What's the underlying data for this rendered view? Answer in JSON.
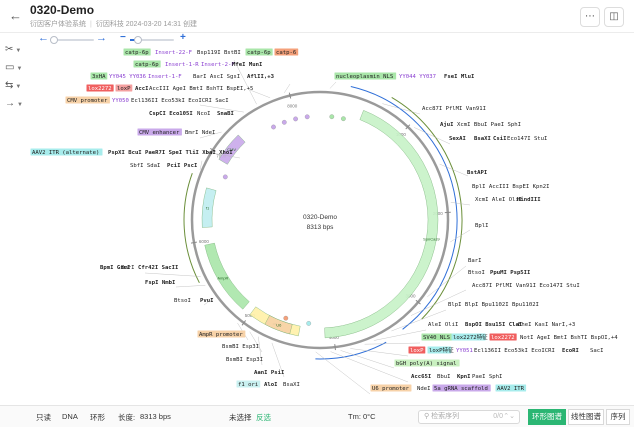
{
  "header": {
    "title": "0320-Demo",
    "org": "衍因客户体验系统",
    "meta": "衍因科技 2024-03-20 14:31 创建",
    "more_icon": "ellipsis-icon",
    "panel_icon": "side-panel-icon"
  },
  "tools": [
    {
      "icon": "scissors-icon",
      "glyph": "✂"
    },
    {
      "icon": "tag-icon",
      "glyph": "▭"
    },
    {
      "icon": "swap-icon",
      "glyph": "⇆"
    },
    {
      "icon": "arrow-right-icon",
      "glyph": "→"
    }
  ],
  "plasmid": {
    "name": "0320-Demo",
    "size_label": "8313 bps",
    "ticks": [
      "1000",
      "2000",
      "3000",
      "4000",
      "5000",
      "6000",
      "7000",
      "8000"
    ]
  },
  "labels": [
    {
      "t": "catp-6p",
      "bg": "#a9e6a9"
    },
    {
      "t": "Insert-22-F",
      "c": "#8a3fd1"
    },
    {
      "t": "Bsp119I BstBI"
    },
    {
      "t": "catp-6p",
      "bg": "#a9e6a9"
    },
    {
      "t": "catp-6",
      "bg": "#f4a07a"
    },
    {
      "t": "catp-6p",
      "bg": "#a9e6a9"
    },
    {
      "t": "Insert-1-R",
      "c": "#8a3fd1"
    },
    {
      "t": "Insert-2-F",
      "c": "#8a3fd1"
    },
    {
      "t": "MfeI MunI",
      "b": true
    },
    {
      "t": "3xHA",
      "bg": "#a9e6a9"
    },
    {
      "t": "YY045 YY036",
      "c": "#8a3fd1"
    },
    {
      "t": "Insert-1-F",
      "c": "#8a3fd1"
    },
    {
      "t": "BarI AscI SgsI"
    },
    {
      "t": "AflII,+3",
      "b": true
    },
    {
      "t": "lox2272",
      "bg": "#f05f5f",
      "c": "#fff"
    },
    {
      "t": "loxP",
      "bg": "#f4a0a0"
    },
    {
      "t": "AccI",
      "b": true
    },
    {
      "t": "AccIII AgeI BmtI BshTI BspEI,+5"
    },
    {
      "t": "CMV promoter",
      "bg": "#f7d2a8"
    },
    {
      "t": "YY050",
      "c": "#8a3fd1"
    },
    {
      "t": "Ecl136II Eco53kI EcoICRI SacI"
    },
    {
      "t": "CspCI Eco105I",
      "b": true
    },
    {
      "t": "NcoI"
    },
    {
      "t": "SnaBI",
      "b": true
    },
    {
      "t": "CMV enhancer",
      "bg": "#c9a9ea"
    },
    {
      "t": "BmrI NdeI"
    },
    {
      "t": "AAV2 ITR (alternate)",
      "bg": "#a7ecec"
    },
    {
      "t": "PspXI BcuI PaeR7I SpeI TliI XbaI XhoI",
      "b": true
    },
    {
      "t": "SbfI SdaI"
    },
    {
      "t": "PciI PscI",
      "b": true
    },
    {
      "t": "nucleoplasmin NLS",
      "bg": "#a9e6a9"
    },
    {
      "t": "YY044 YY037",
      "c": "#8a3fd1"
    },
    {
      "t": "FseI MluI",
      "b": true
    },
    {
      "t": "Acc87I PflMI Van91I"
    },
    {
      "t": "AjuI",
      "b": true
    },
    {
      "t": "XcmI BbuI PaeI SphI"
    },
    {
      "t": "SexAI",
      "b": true
    },
    {
      "t": "BsaXI",
      "b": true
    },
    {
      "t": "CsiI",
      "b": true
    },
    {
      "t": "Eco147I StuI"
    },
    {
      "t": "BstAPI",
      "b": true
    },
    {
      "t": "BplI AccIII BspEI Kpn2I"
    },
    {
      "t": "XcmI AleI OliI"
    },
    {
      "t": "HindIII",
      "b": true
    },
    {
      "t": "BplI"
    },
    {
      "t": "BpmI GsuI",
      "b": true
    },
    {
      "t": "BmrI"
    },
    {
      "t": "Cfr42I SacII",
      "b": true
    },
    {
      "t": "FspI NmbI",
      "b": true
    },
    {
      "t": "BtsoI"
    },
    {
      "t": "PvuI",
      "b": true
    },
    {
      "t": "BarI"
    },
    {
      "t": "BtsoI"
    },
    {
      "t": "PpuMI Psp5II",
      "b": true
    },
    {
      "t": "Acc87I PflMI Van91I Eco147I StuI"
    },
    {
      "t": "BlpI BlpI Bpu1102I Bpu1102I"
    },
    {
      "t": "AleI OliI"
    },
    {
      "t": "BspOI Bsu15I ClaI",
      "b": true
    },
    {
      "t": "EheI KasI NarI,+3"
    },
    {
      "t": "SV40 NLS",
      "bg": "#a9e6a9"
    },
    {
      "t": "lox2272特征",
      "bg": "#a7ecec"
    },
    {
      "t": "lox2272",
      "bg": "#f05f5f",
      "c": "#fff"
    },
    {
      "t": "NotI AgeI BmtI BshTI BspOI,+4"
    },
    {
      "t": "loxP",
      "bg": "#f05f5f",
      "c": "#fff"
    },
    {
      "t": "loxP特征",
      "bg": "#a7ecec"
    },
    {
      "t": "YY051",
      "c": "#8a3fd1"
    },
    {
      "t": "Ecl136II Eco53kI EcoICRI",
      "b": false
    },
    {
      "t": "EcoRI",
      "b": true
    },
    {
      "t": "SacI"
    },
    {
      "t": "bGH poly(A) signal",
      "bg": "#c9f0c0"
    },
    {
      "t": "Acc65I",
      "b": true
    },
    {
      "t": "BbuI",
      "b": false
    },
    {
      "t": "KpnI",
      "b": true
    },
    {
      "t": "PaeI SphI"
    },
    {
      "t": "U6 promoter",
      "bg": "#f7d2a8"
    },
    {
      "t": "NdeI"
    },
    {
      "t": "5a gRNA scaffold",
      "bg": "#c9a9ea"
    },
    {
      "t": "AAV2 ITR",
      "bg": "#a7ecec"
    },
    {
      "t": "AmpR promoter",
      "bg": "#f7d2a8"
    },
    {
      "t": "BsmBI Esp3I"
    },
    {
      "t": "BsmBI Esp3I"
    },
    {
      "t": "AanI PsiI",
      "b": true
    },
    {
      "t": "f1 ori",
      "bg": "#c9f0f0"
    },
    {
      "t": "AloI",
      "b": true
    },
    {
      "t": "BsaXI"
    }
  ],
  "features": [
    {
      "name": "AmpR",
      "start": 5100,
      "end": 5950,
      "color": "#a9e6a9",
      "dir": 1
    },
    {
      "name": "ori",
      "start": 4400,
      "end": 5000,
      "color": "#fff1a8",
      "dir": 1
    },
    {
      "name": "SpnCas9",
      "start": 500,
      "end": 4100,
      "color": "#c7f2c7",
      "dir": 1
    },
    {
      "name": "CMV",
      "start": 6950,
      "end": 7300,
      "color": "#c9a9ea",
      "dir": 1
    },
    {
      "name": "f1",
      "start": 6150,
      "end": 6600,
      "color": "#bfeef0",
      "dir": 1
    },
    {
      "name": "U6",
      "start": 4500,
      "end": 4800,
      "color": "#f7d2a8",
      "dir": 1
    }
  ],
  "footer": {
    "mode": "只读",
    "type": "DNA",
    "topology": "环形",
    "length_label": "长度:",
    "length_value": "8313 bps",
    "selection": "未选择",
    "invert": "反选",
    "tm": "Tm: 0°C",
    "search_placeholder": "检索序列",
    "search_count": "0/0",
    "view_circular": "环形图谱",
    "view_linear": "线性图谱",
    "view_sequence": "序列"
  }
}
